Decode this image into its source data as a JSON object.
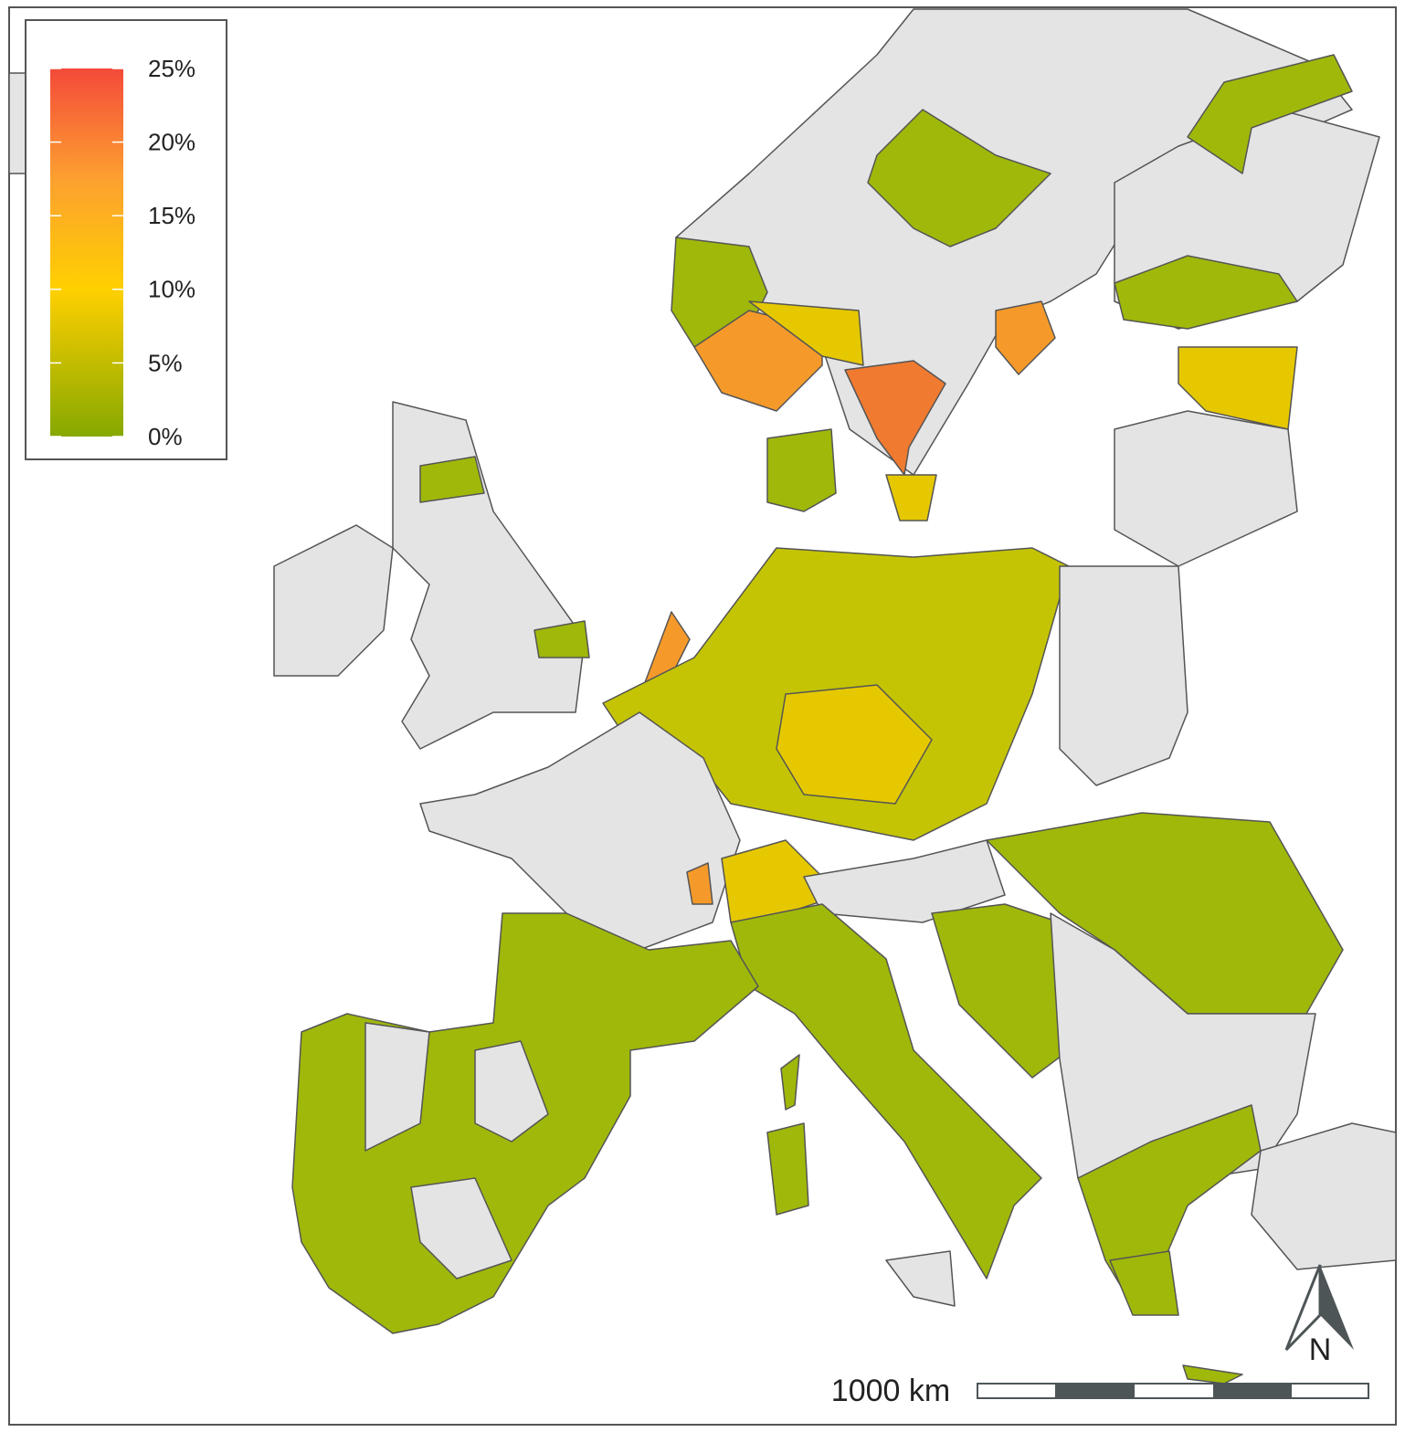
{
  "legend": {
    "range": [
      0,
      25
    ],
    "ticks": [
      {
        "value": 0,
        "label": "0%"
      },
      {
        "value": 5,
        "label": "5%"
      },
      {
        "value": 10,
        "label": "10%"
      },
      {
        "value": 15,
        "label": "15%"
      },
      {
        "value": 20,
        "label": "20%"
      },
      {
        "value": 25,
        "label": "25%"
      }
    ]
  },
  "scale_bar": {
    "label": "1000 km"
  },
  "north_arrow": {
    "label": "N"
  }
}
